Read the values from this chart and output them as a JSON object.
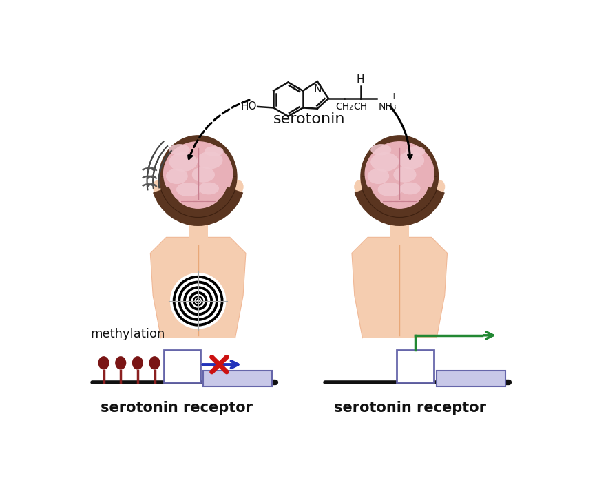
{
  "bg_color": "#ffffff",
  "skin_light": "#f5cdb0",
  "skin_mid": "#f0b896",
  "skin_dark": "#e8a878",
  "skin_shadow": "#dda080",
  "hair_color": "#5a3520",
  "hair_dark": "#3d2010",
  "brain_pink": "#e8b0b8",
  "brain_light": "#f0c8d0",
  "brain_dark": "#c88090",
  "brain_fold": "#d890a0",
  "cereb_color": "#d8a0b0",
  "line_color": "#111111",
  "text_color": "#111111",
  "methyl_color": "#7a1515",
  "methyl_stem": "#8b2020",
  "promoter_fill": "#c8c8e8",
  "promoter_edge": "#6666aa",
  "arrow_blue": "#2233bb",
  "arrow_green": "#228833",
  "arrow_red": "#cc1111",
  "chem_color": "#111111",
  "serotonin_label": "serotonin",
  "methylation_label": "methylation",
  "receptor_label": "serotonin receptor",
  "target_colors": [
    "white",
    "black",
    "white",
    "black",
    "white",
    "black",
    "white",
    "black",
    "white",
    "black",
    "white",
    "black",
    "white",
    "white"
  ],
  "target_radii": [
    52,
    47,
    42,
    37,
    32,
    27,
    22,
    17,
    12,
    9,
    6,
    4,
    2,
    1
  ]
}
